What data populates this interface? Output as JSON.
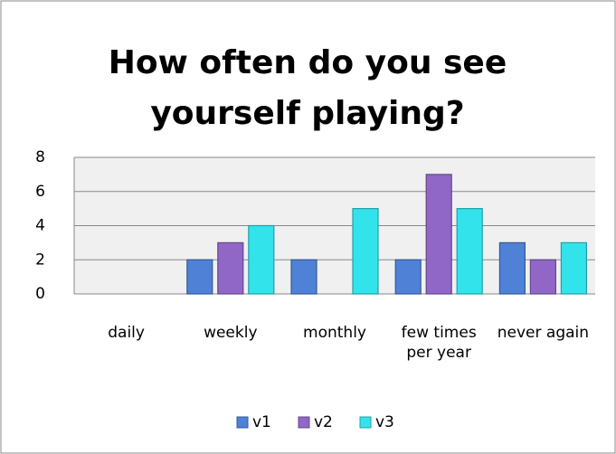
{
  "chart_data": {
    "type": "bar",
    "title": "How often do you see yourself playing?",
    "categories": [
      "daily",
      "weekly",
      "monthly",
      "few times per year",
      "never again"
    ],
    "series": [
      {
        "name": "v1",
        "color": "#4f81d6",
        "values": [
          0,
          2,
          2,
          2,
          3
        ]
      },
      {
        "name": "v2",
        "color": "#9067c6",
        "values": [
          0,
          3,
          0,
          7,
          2
        ]
      },
      {
        "name": "v3",
        "color": "#33e3ec",
        "values": [
          0,
          4,
          5,
          5,
          3
        ]
      }
    ],
    "ylim": [
      0,
      8
    ],
    "yticks": [
      0,
      2,
      4,
      6,
      8
    ],
    "grid": true,
    "legend": "bottom"
  }
}
